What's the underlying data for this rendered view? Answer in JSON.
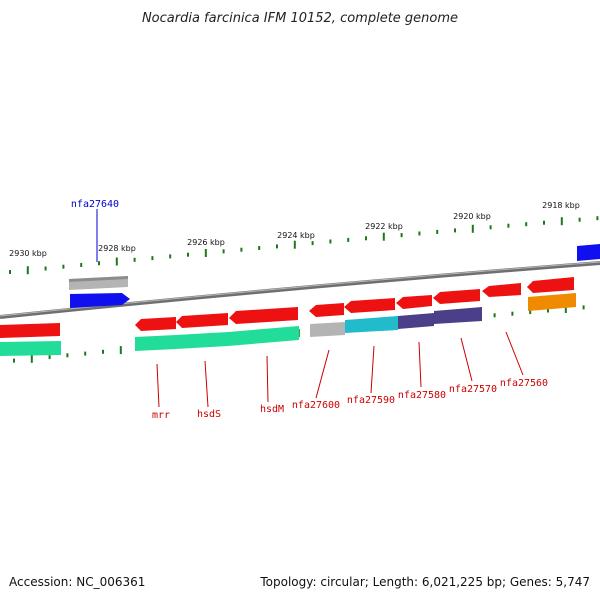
{
  "title": "Nocardia farcinica IFM 10152, complete genome",
  "ruler": [
    {
      "label": "2930 kbp"
    },
    {
      "label": "2928 kbp"
    },
    {
      "label": "2926 kbp"
    },
    {
      "label": "2924 kbp"
    },
    {
      "label": "2922 kbp"
    },
    {
      "label": "2920 kbp"
    },
    {
      "label": "2918 kbp"
    }
  ],
  "gene_labels": [
    {
      "text": "nfa27640",
      "color": "#0000cc"
    },
    {
      "text": "mrr",
      "color": "#cc0000"
    },
    {
      "text": "hsdS",
      "color": "#cc0000"
    },
    {
      "text": "hsdM",
      "color": "#cc0000"
    },
    {
      "text": "nfa27600",
      "color": "#cc0000"
    },
    {
      "text": "nfa27590",
      "color": "#cc0000"
    },
    {
      "text": "nfa27580",
      "color": "#cc0000"
    },
    {
      "text": "nfa27570",
      "color": "#cc0000"
    },
    {
      "text": "nfa27560",
      "color": "#cc0000"
    }
  ],
  "colors": {
    "backbone": "#808080",
    "tick": "#1a7a1a",
    "red": "#ee1111",
    "grey": "#b4b4b4",
    "blue": "#1010ee",
    "green": "#22dd99",
    "cyan": "#22bbcc",
    "navy": "#4a3f88",
    "orange": "#f08a00"
  },
  "footer": {
    "accession": "Accession: NC_006361",
    "topology": "Topology: circular; Length: 6,021,225 bp; Genes: 5,747"
  }
}
